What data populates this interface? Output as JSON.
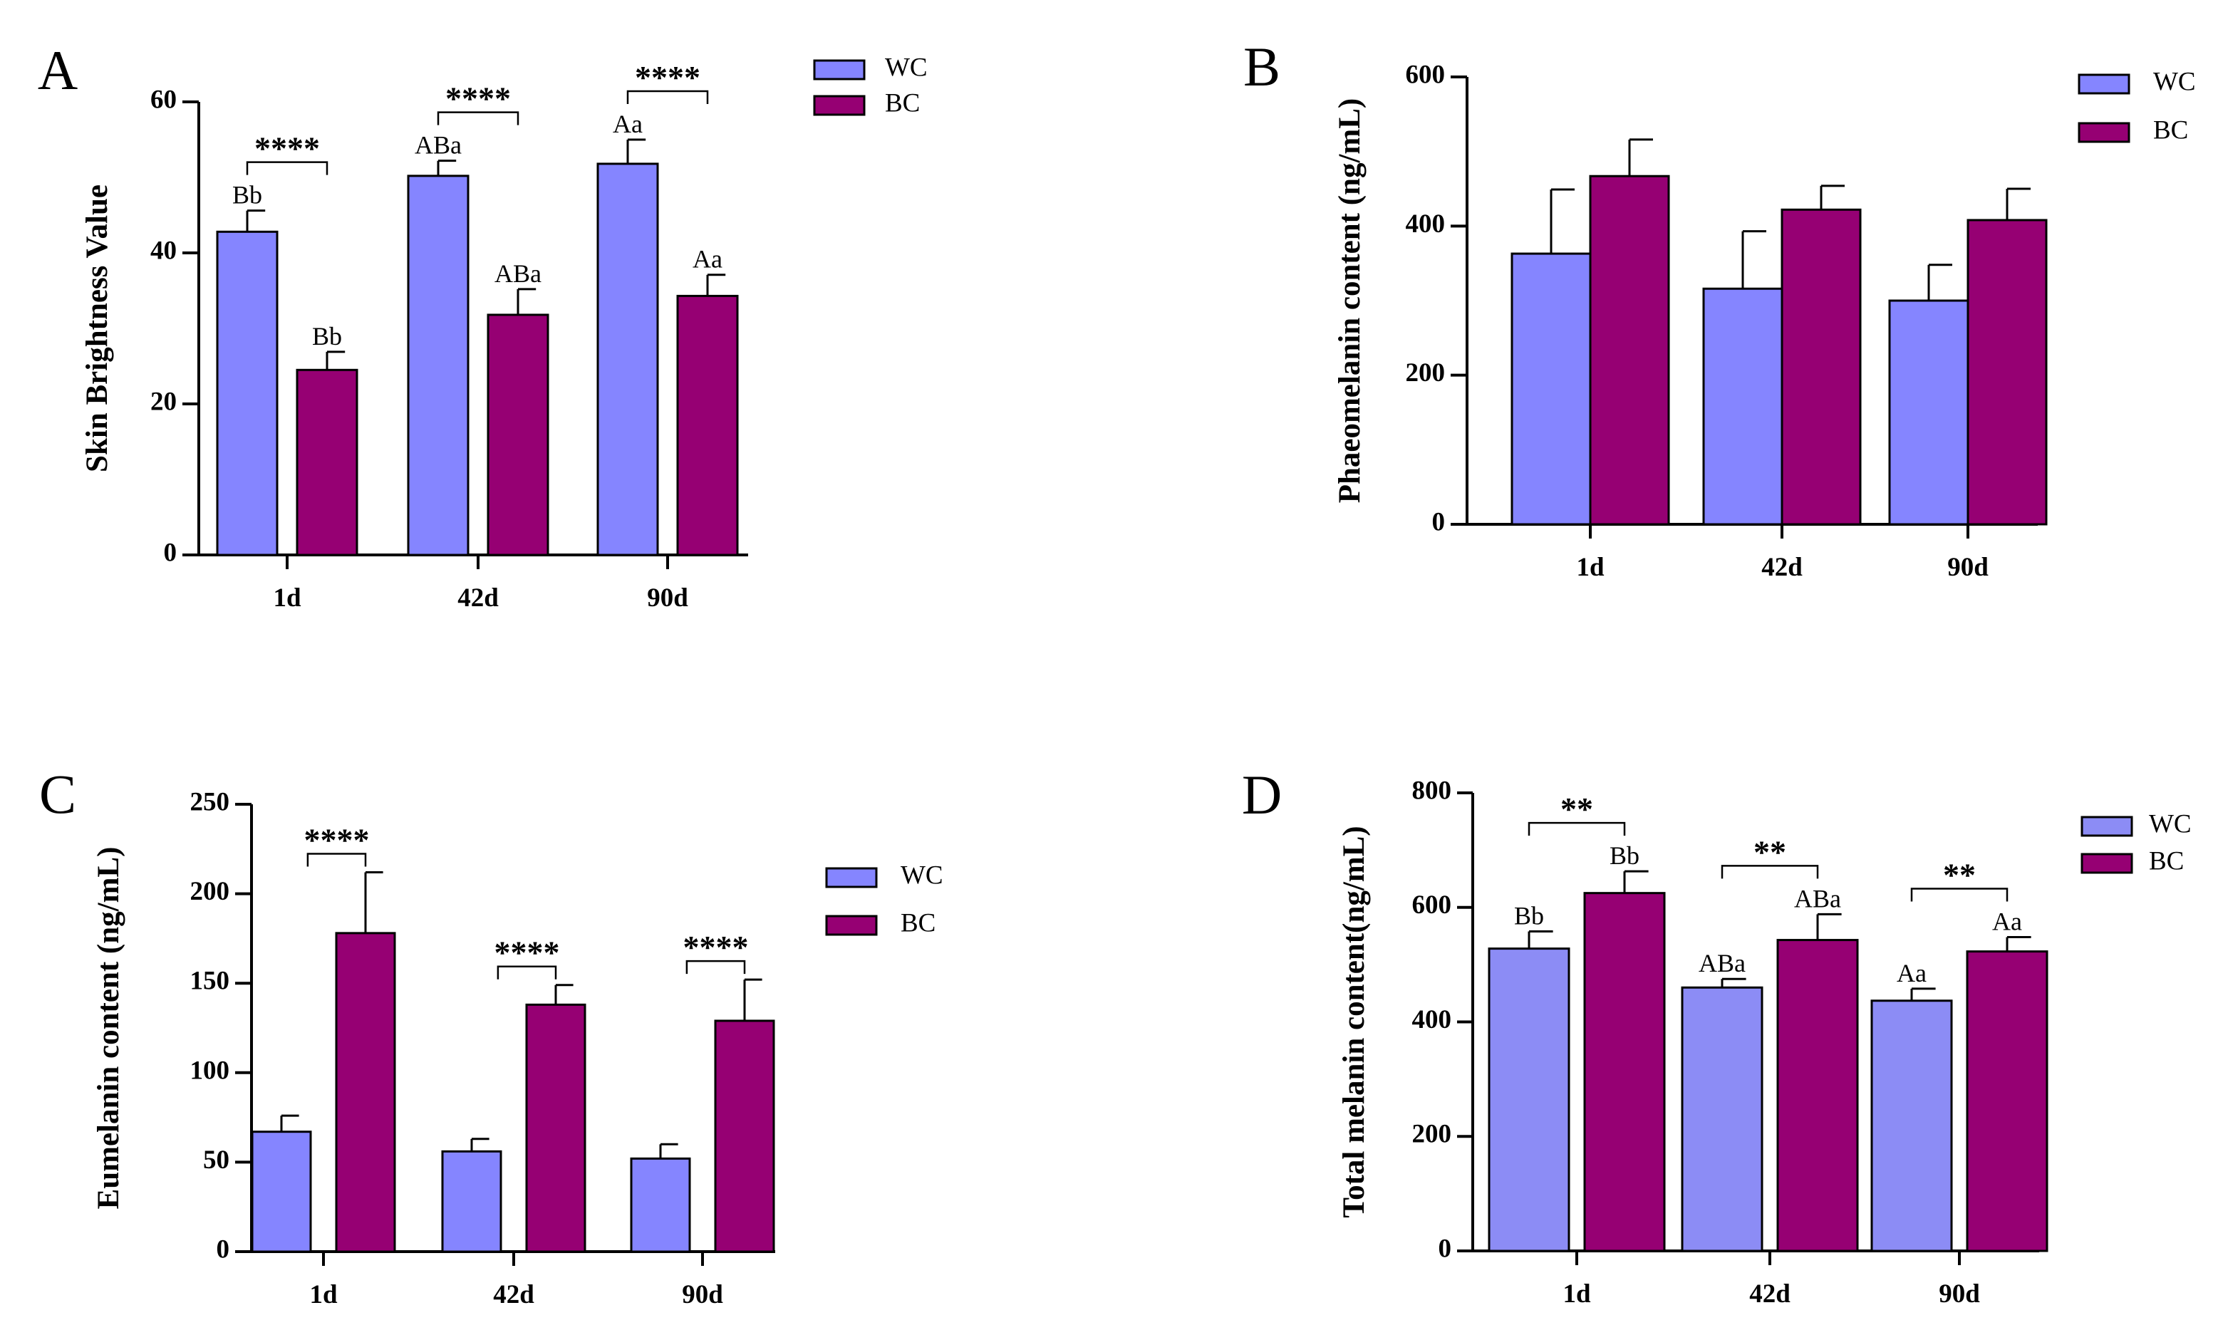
{
  "figure": {
    "legend_labels": [
      "WC",
      "BC"
    ],
    "colors": {
      "WC": "#8585ff",
      "WC_D": "#8c8cf5",
      "BC": "#960073"
    }
  },
  "chart_data": [
    {
      "type": "bar",
      "panel": "A",
      "ylabel": "Skin Brightness Value",
      "xlabel": "",
      "ylim": [
        0,
        60
      ],
      "yticks": [
        0,
        20,
        40,
        60
      ],
      "categories": [
        "1d",
        "42d",
        "90d"
      ],
      "series": [
        {
          "name": "WC",
          "values": [
            42.8,
            50.2,
            51.8
          ],
          "errors": [
            2.8,
            2.0,
            3.2
          ],
          "letters": [
            "Bb",
            "ABa",
            "Aa"
          ]
        },
        {
          "name": "BC",
          "values": [
            24.5,
            31.8,
            34.3
          ],
          "errors": [
            2.4,
            3.4,
            2.8
          ],
          "letters": [
            "Bb",
            "ABa",
            "Aa"
          ]
        }
      ],
      "significance": [
        "****",
        "****",
        "****"
      ]
    },
    {
      "type": "bar",
      "panel": "B",
      "ylabel": "Phaeomelanin content (ng/mL)",
      "xlabel": "",
      "ylim": [
        0,
        600
      ],
      "yticks": [
        0,
        200,
        400,
        600
      ],
      "categories": [
        "1d",
        "42d",
        "90d"
      ],
      "series": [
        {
          "name": "WC",
          "values": [
            363,
            316,
            300
          ],
          "errors": [
            86,
            77,
            48
          ],
          "letters": [
            "",
            "",
            ""
          ]
        },
        {
          "name": "BC",
          "values": [
            467,
            422,
            408
          ],
          "errors": [
            49,
            32,
            42
          ],
          "letters": [
            "",
            "",
            ""
          ]
        }
      ],
      "significance": [
        "",
        "",
        ""
      ]
    },
    {
      "type": "bar",
      "panel": "C",
      "ylabel": "Eumelanin content (ng/mL)",
      "xlabel": "",
      "ylim": [
        0,
        250
      ],
      "yticks": [
        0,
        50,
        100,
        150,
        200,
        250
      ],
      "categories": [
        "1d",
        "42d",
        "90d"
      ],
      "series": [
        {
          "name": "WC",
          "values": [
            67,
            56,
            52
          ],
          "errors": [
            9,
            7,
            8
          ],
          "letters": [
            "",
            "",
            ""
          ]
        },
        {
          "name": "BC",
          "values": [
            178,
            138,
            129
          ],
          "errors": [
            34,
            11,
            23
          ],
          "letters": [
            "",
            "",
            ""
          ]
        }
      ],
      "significance": [
        "****",
        "****",
        "****"
      ]
    },
    {
      "type": "bar",
      "panel": "D",
      "ylabel": "Total melanin content(ng/mL)",
      "xlabel": "",
      "ylim": [
        0,
        800
      ],
      "yticks": [
        0,
        200,
        400,
        600,
        800
      ],
      "categories": [
        "1d",
        "42d",
        "90d"
      ],
      "series": [
        {
          "name": "WC",
          "values": [
            528,
            460,
            437
          ],
          "errors": [
            30,
            15,
            21
          ],
          "letters": [
            "Bb",
            "ABa",
            "Aa"
          ]
        },
        {
          "name": "BC",
          "values": [
            625,
            543,
            523
          ],
          "errors": [
            38,
            45,
            25
          ],
          "letters": [
            "Bb",
            "ABa",
            "Aa"
          ]
        }
      ],
      "significance": [
        "**",
        "**",
        "**"
      ]
    }
  ]
}
